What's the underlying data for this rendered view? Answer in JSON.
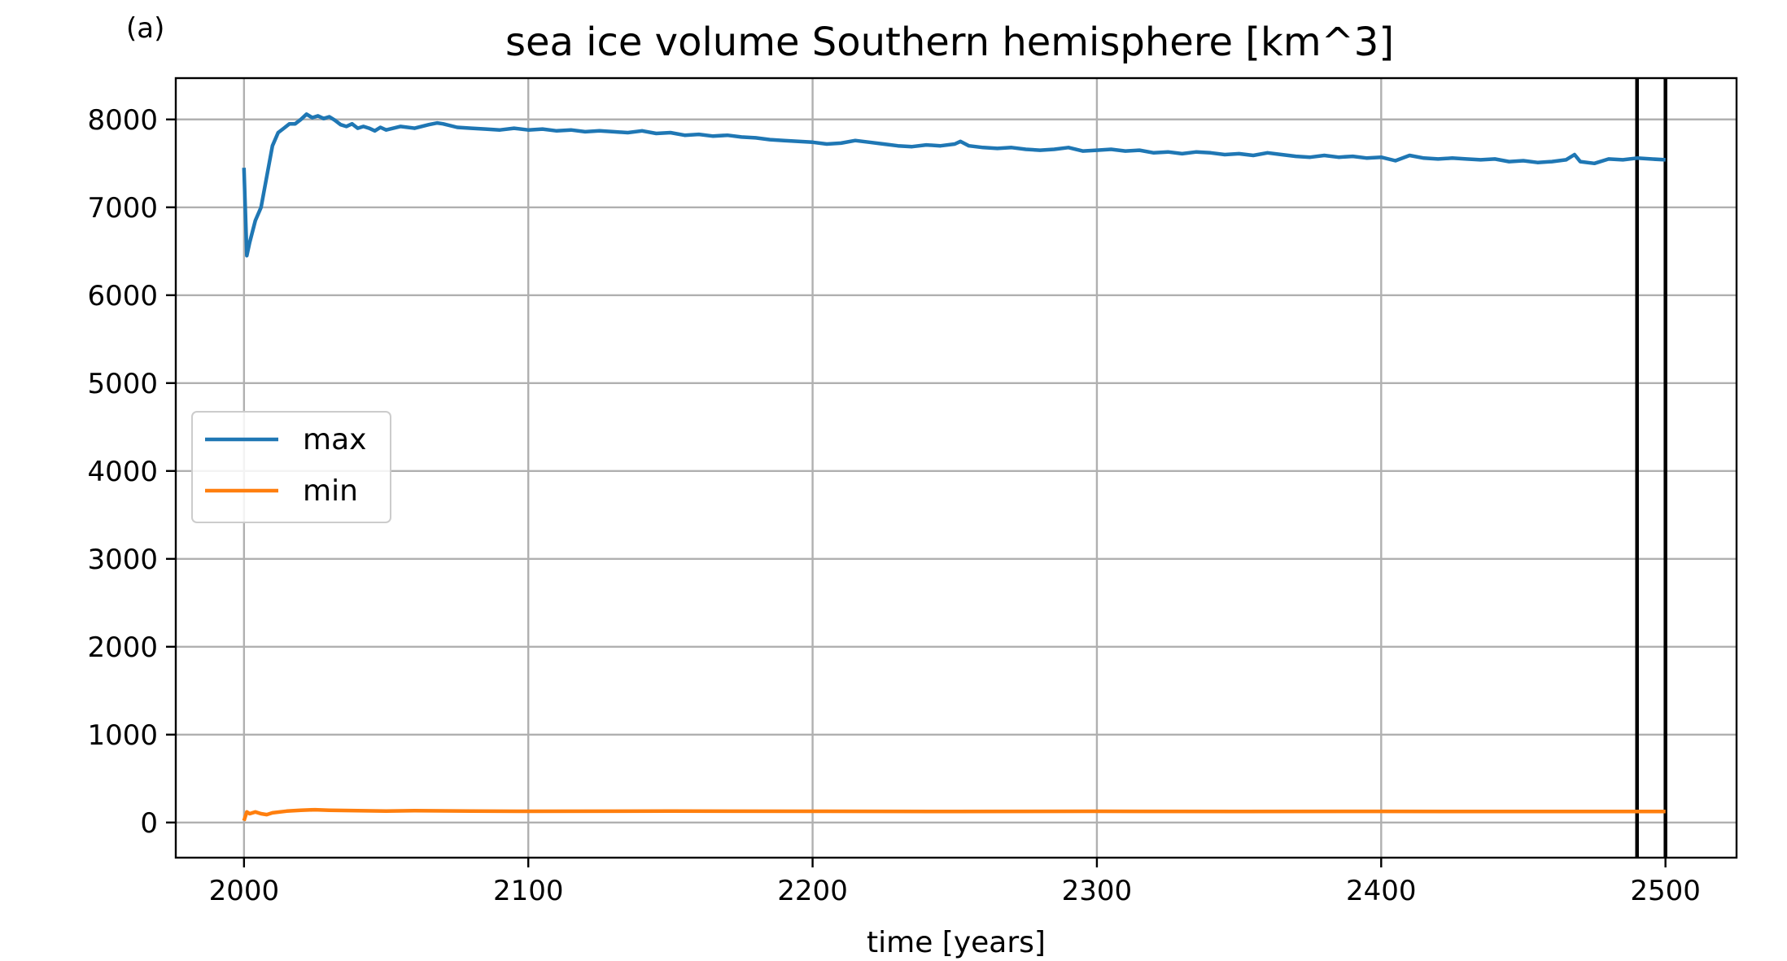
{
  "chart_data": {
    "type": "line",
    "panel_label": "(a)",
    "title": "sea ice volume Southern hemisphere [km^3]",
    "xlabel": "time [years]",
    "ylabel": "",
    "xlim": [
      1976,
      2525
    ],
    "ylim": [
      -400,
      8470
    ],
    "xticks": [
      2000,
      2100,
      2200,
      2300,
      2400,
      2500
    ],
    "yticks": [
      0,
      1000,
      2000,
      3000,
      4000,
      5000,
      6000,
      7000,
      8000
    ],
    "grid": true,
    "legend_position": "center-left",
    "vertical_lines": [
      2490,
      2500
    ],
    "vertical_line_color": "#000000",
    "series": [
      {
        "name": "max",
        "color": "#1f77b4",
        "x": [
          2000,
          2001,
          2002,
          2004,
          2006,
          2008,
          2010,
          2012,
          2014,
          2016,
          2018,
          2020,
          2022,
          2024,
          2026,
          2028,
          2030,
          2032,
          2034,
          2036,
          2038,
          2040,
          2042,
          2044,
          2046,
          2048,
          2050,
          2055,
          2060,
          2065,
          2068,
          2070,
          2075,
          2080,
          2085,
          2090,
          2095,
          2100,
          2105,
          2110,
          2115,
          2120,
          2125,
          2130,
          2135,
          2140,
          2145,
          2150,
          2155,
          2160,
          2165,
          2170,
          2175,
          2180,
          2185,
          2190,
          2195,
          2200,
          2205,
          2210,
          2215,
          2220,
          2225,
          2230,
          2235,
          2240,
          2245,
          2250,
          2252,
          2255,
          2260,
          2265,
          2270,
          2275,
          2280,
          2285,
          2290,
          2295,
          2300,
          2305,
          2310,
          2315,
          2320,
          2325,
          2330,
          2335,
          2340,
          2345,
          2350,
          2355,
          2360,
          2365,
          2370,
          2375,
          2380,
          2385,
          2390,
          2395,
          2400,
          2405,
          2410,
          2415,
          2420,
          2425,
          2430,
          2435,
          2440,
          2445,
          2450,
          2455,
          2460,
          2465,
          2468,
          2470,
          2475,
          2480,
          2485,
          2490,
          2495,
          2500
        ],
        "y": [
          7450,
          6450,
          6600,
          6850,
          7000,
          7350,
          7700,
          7850,
          7900,
          7950,
          7950,
          8000,
          8060,
          8020,
          8040,
          8010,
          8030,
          7990,
          7940,
          7920,
          7950,
          7900,
          7920,
          7900,
          7870,
          7910,
          7880,
          7920,
          7900,
          7940,
          7960,
          7950,
          7910,
          7900,
          7890,
          7880,
          7900,
          7880,
          7890,
          7870,
          7880,
          7860,
          7870,
          7860,
          7850,
          7870,
          7840,
          7850,
          7820,
          7830,
          7810,
          7820,
          7800,
          7790,
          7770,
          7760,
          7750,
          7740,
          7720,
          7730,
          7760,
          7740,
          7720,
          7700,
          7690,
          7710,
          7700,
          7720,
          7750,
          7700,
          7680,
          7670,
          7680,
          7660,
          7650,
          7660,
          7680,
          7640,
          7650,
          7660,
          7640,
          7650,
          7620,
          7630,
          7610,
          7630,
          7620,
          7600,
          7610,
          7590,
          7620,
          7600,
          7580,
          7570,
          7590,
          7570,
          7580,
          7560,
          7570,
          7530,
          7590,
          7560,
          7550,
          7560,
          7550,
          7540,
          7550,
          7520,
          7530,
          7510,
          7520,
          7540,
          7600,
          7520,
          7500,
          7550,
          7540,
          7560,
          7550,
          7540
        ]
      },
      {
        "name": "min",
        "color": "#ff7f0e",
        "x": [
          2000,
          2001,
          2002,
          2004,
          2006,
          2008,
          2010,
          2015,
          2020,
          2025,
          2030,
          2040,
          2050,
          2060,
          2080,
          2100,
          2150,
          2200,
          2250,
          2300,
          2350,
          2400,
          2450,
          2500
        ],
        "y": [
          20,
          120,
          100,
          120,
          100,
          90,
          110,
          130,
          140,
          145,
          140,
          135,
          130,
          135,
          130,
          128,
          130,
          128,
          125,
          128,
          125,
          127,
          125,
          125
        ]
      }
    ]
  }
}
